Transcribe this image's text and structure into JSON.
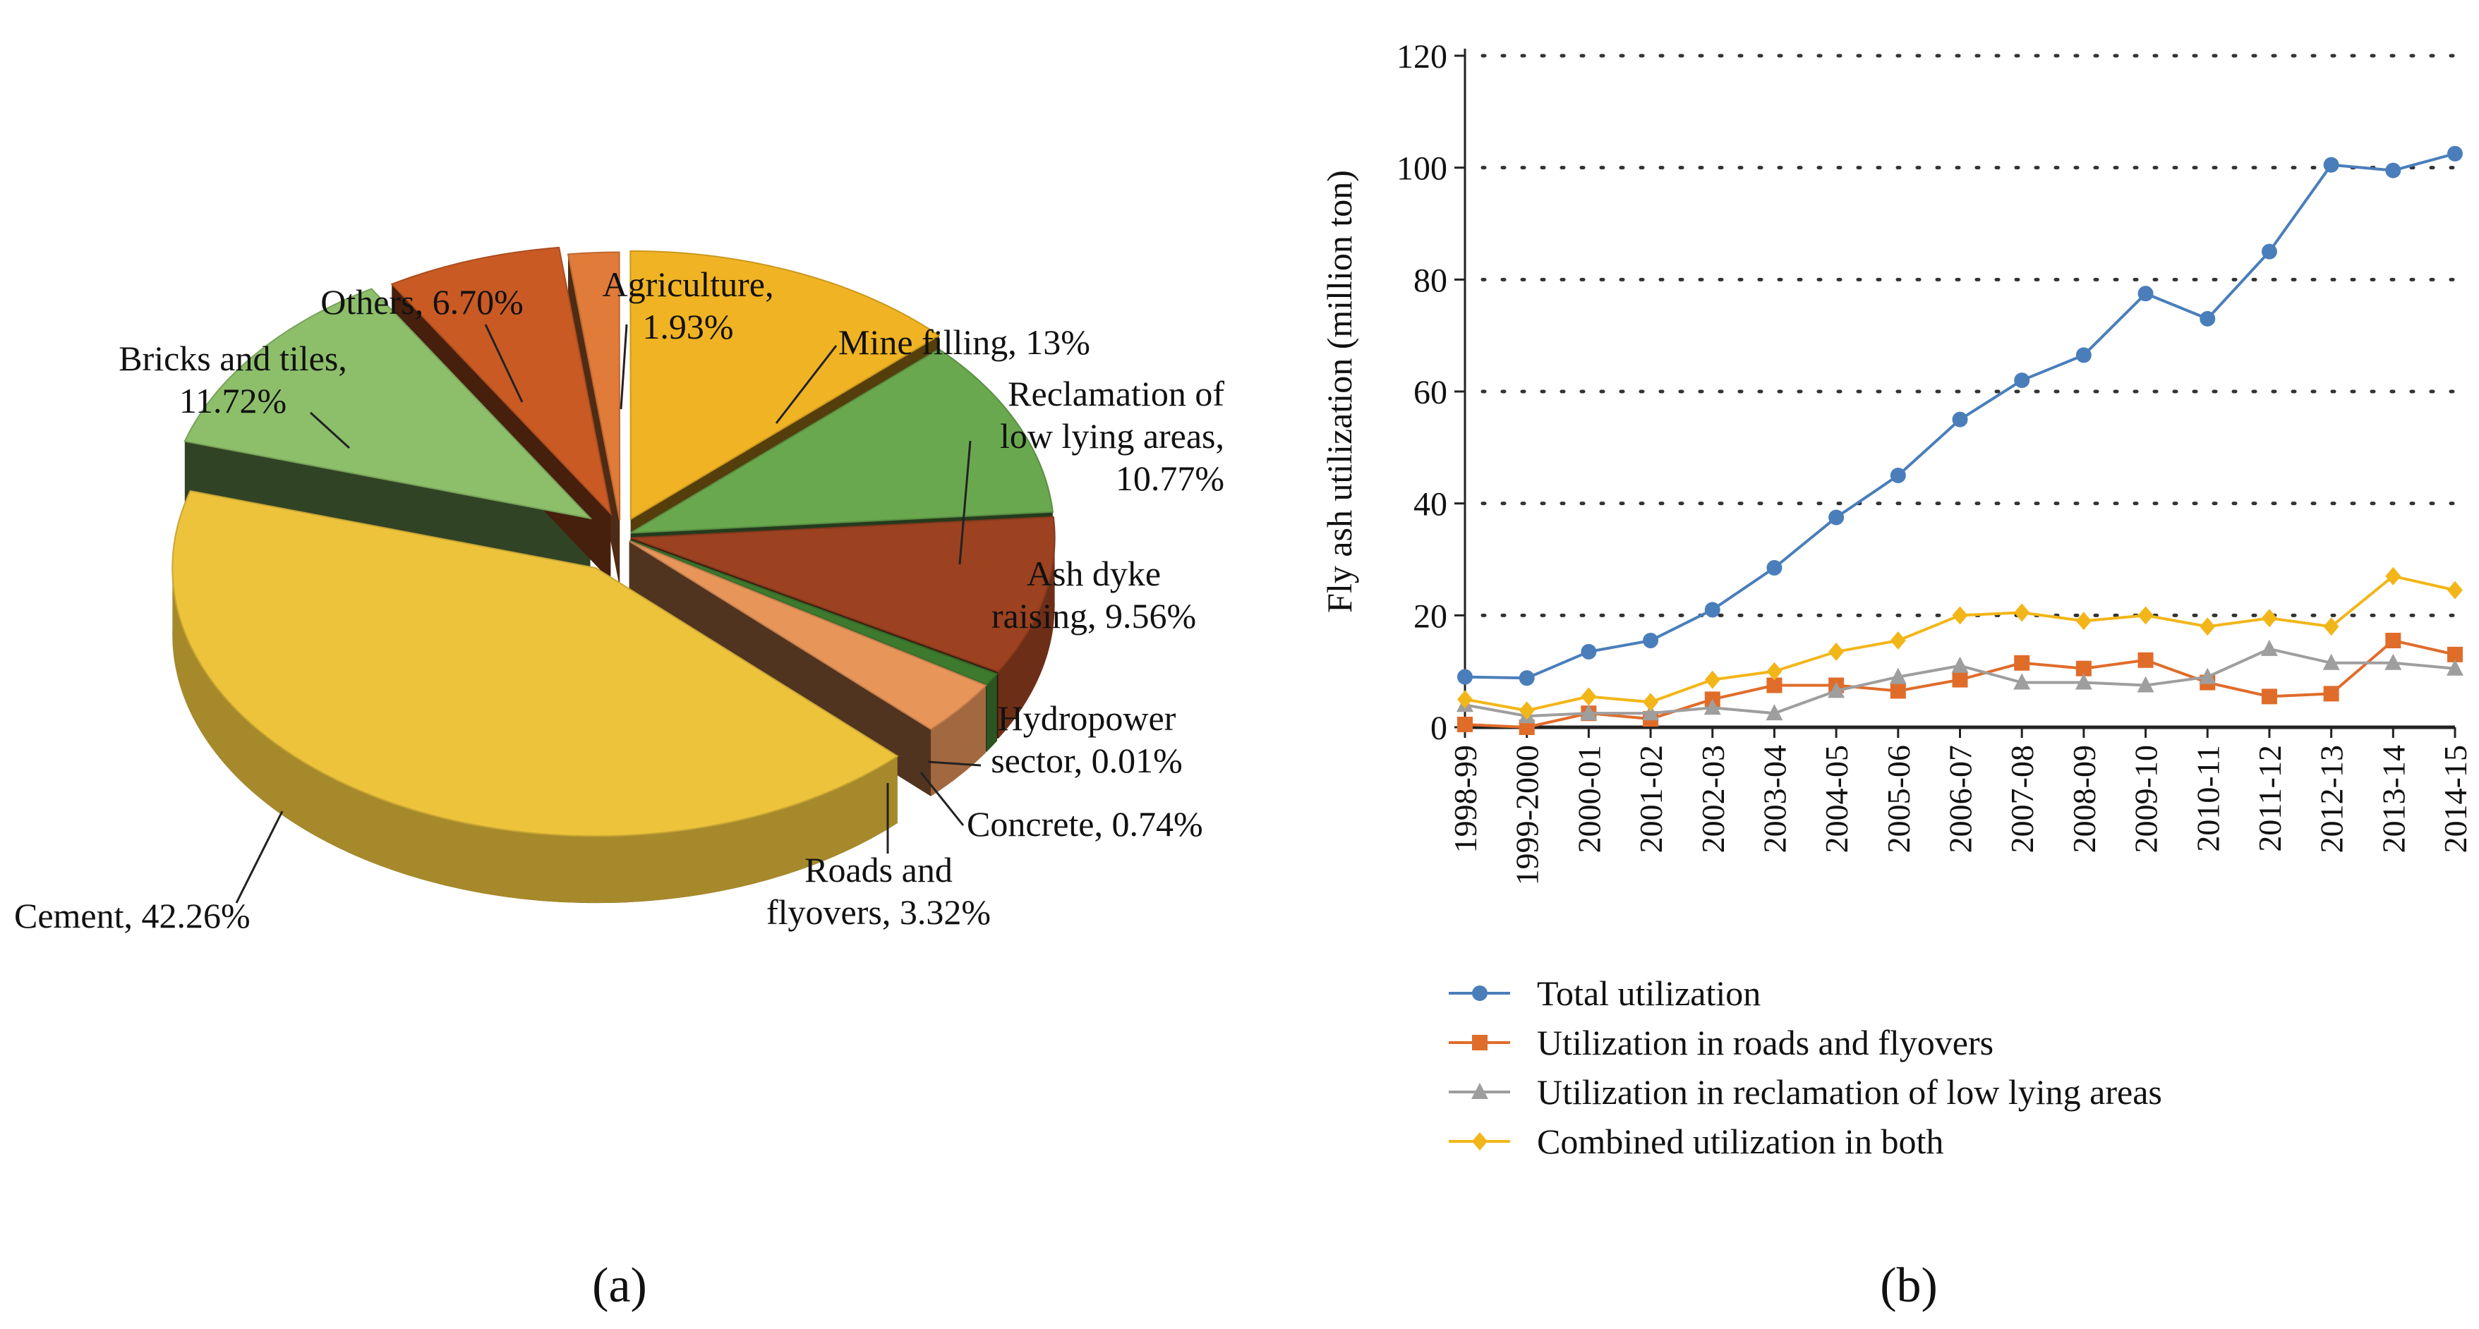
{
  "chart_data": [
    {
      "type": "pie",
      "panel_label": "(a)",
      "style": "3d-exploded",
      "slices": [
        {
          "name": "Agriculture",
          "label_lines": [
            "Agriculture,",
            "1.93%"
          ],
          "value": 1.93,
          "color": "#E07B39"
        },
        {
          "name": "Mine filling",
          "label_lines": [
            "Mine filling, 13%"
          ],
          "value": 13,
          "color": "#F0B323"
        },
        {
          "name": "Reclamation of low lying areas",
          "label_lines": [
            "Reclamation of",
            "low lying areas,",
            "10.77%"
          ],
          "value": 10.77,
          "color": "#6AA84F"
        },
        {
          "name": "Ash dyke raising",
          "label_lines": [
            "Ash dyke",
            "raising, 9.56%"
          ],
          "value": 9.56,
          "color": "#9C4221"
        },
        {
          "name": "Hydropower sector",
          "label_lines": [
            "Hydropower",
            "sector, 0.01%"
          ],
          "value": 0.01,
          "color": "#2C5A20"
        },
        {
          "name": "Concrete",
          "label_lines": [
            "Concrete, 0.74%"
          ],
          "value": 0.74,
          "color": "#3E7A2E"
        },
        {
          "name": "Roads and flyovers",
          "label_lines": [
            "Roads and",
            "flyovers, 3.32%"
          ],
          "value": 3.32,
          "color": "#E8955A"
        },
        {
          "name": "Cement",
          "label_lines": [
            "Cement, 42.26%"
          ],
          "value": 42.26,
          "color": "#EDC33C"
        },
        {
          "name": "Bricks and tiles",
          "label_lines": [
            "Bricks and tiles,",
            "11.72%"
          ],
          "value": 11.72,
          "color": "#8DBF6A"
        },
        {
          "name": "Others",
          "label_lines": [
            "Others, 6.70%"
          ],
          "value": 6.7,
          "color": "#C95A24"
        }
      ]
    },
    {
      "type": "line",
      "panel_label": "(b)",
      "ylabel": "Fly ash utilization (million ton)",
      "xlabel": "",
      "ylim": [
        0,
        120
      ],
      "yticks": [
        0,
        20,
        40,
        60,
        80,
        100,
        120
      ],
      "grid": "horizontal dotted",
      "legend_position": "bottom",
      "categories": [
        "1998-99",
        "1999-2000",
        "2000-01",
        "2001-02",
        "2002-03",
        "2003-04",
        "2004-05",
        "2005-06",
        "2006-07",
        "2007-08",
        "2008-09",
        "2009-10",
        "2010-11",
        "2011-12",
        "2012-13",
        "2013-14",
        "2014-15"
      ],
      "series": [
        {
          "name": "Total utilization",
          "marker": "circle",
          "color": "#4A7EBB",
          "values": [
            9,
            8.8,
            13.5,
            15.5,
            21,
            28.5,
            37.5,
            45,
            55,
            62,
            66.5,
            77.5,
            73,
            85,
            100.5,
            99.5,
            102.5
          ]
        },
        {
          "name": "Utilization in roads and flyovers",
          "marker": "square",
          "color": "#E06C2A",
          "values": [
            0.5,
            0,
            2.5,
            1.5,
            5,
            7.5,
            7.5,
            6.5,
            8.5,
            11.5,
            10.5,
            12,
            8,
            5.5,
            6,
            15.5,
            13
          ]
        },
        {
          "name": "Utilization in reclamation of low lying areas",
          "marker": "triangle",
          "color": "#9E9E9E",
          "values": [
            4,
            2,
            2.5,
            2.5,
            3.5,
            2.5,
            6.5,
            9,
            11,
            8,
            8,
            7.5,
            9,
            14,
            11.5,
            11.5,
            10.5
          ]
        },
        {
          "name": "Combined utilization in both",
          "marker": "diamond",
          "color": "#F2B619",
          "values": [
            5,
            3,
            5.5,
            4.5,
            8.5,
            10,
            13.5,
            15.5,
            20,
            20.5,
            19,
            20,
            18,
            19.5,
            18,
            27,
            24.5
          ]
        }
      ]
    }
  ]
}
